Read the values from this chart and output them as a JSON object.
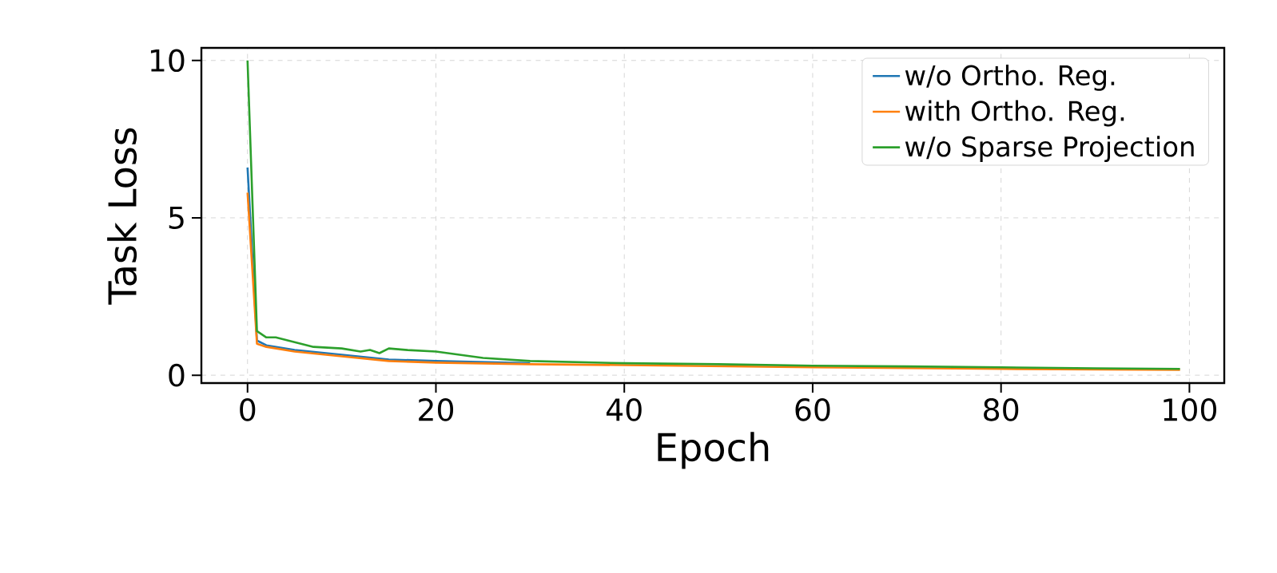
{
  "chart_data": {
    "type": "line",
    "xlabel": "Epoch",
    "ylabel": "Task Loss",
    "xlim": [
      -4.9,
      103.7
    ],
    "ylim": [
      -0.25,
      10.4
    ],
    "xticks": [
      0,
      20,
      40,
      60,
      80,
      100
    ],
    "yticks": [
      0,
      5,
      10
    ],
    "grid": true,
    "legend": "top right",
    "marker": "none",
    "line_style": "solid",
    "series": [
      {
        "name": "w/o Ortho. Reg.",
        "color": "#1f77b4",
        "x": [
          0,
          1,
          2,
          5,
          10,
          15,
          20,
          30
        ],
        "values": [
          6.6,
          1.1,
          0.95,
          0.8,
          0.65,
          0.5,
          0.45,
          0.38
        ]
      },
      {
        "name": "with Ortho. Reg.",
        "color": "#ff7f0e",
        "x": [
          0,
          1,
          2,
          5,
          10,
          15,
          20,
          30,
          40,
          60,
          80,
          99
        ],
        "values": [
          5.8,
          1.0,
          0.9,
          0.75,
          0.6,
          0.45,
          0.4,
          0.35,
          0.32,
          0.25,
          0.2,
          0.17
        ]
      },
      {
        "name": "w/o Sparse Projection",
        "color": "#2ca02c",
        "x": [
          0,
          1,
          2,
          3,
          5,
          7,
          10,
          12,
          13,
          14,
          15,
          17,
          20,
          25,
          30,
          40,
          50,
          60,
          70,
          80,
          90,
          99
        ],
        "values": [
          10,
          1.4,
          1.2,
          1.2,
          1.05,
          0.9,
          0.85,
          0.75,
          0.8,
          0.7,
          0.85,
          0.8,
          0.75,
          0.55,
          0.45,
          0.38,
          0.35,
          0.3,
          0.28,
          0.25,
          0.22,
          0.2
        ]
      }
    ]
  }
}
